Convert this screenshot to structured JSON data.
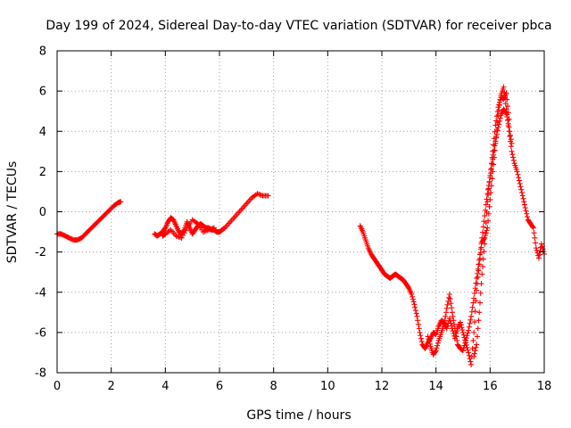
{
  "chart_data": {
    "type": "scatter",
    "title": "Day 199 of 2024, Sidereal Day-to-day VTEC variation (SDTVAR) for receiver pbca",
    "xlabel": "GPS time / hours",
    "ylabel": "SDTVAR / TECUs",
    "xlim": [
      0,
      18
    ],
    "ylim": [
      -8,
      8
    ],
    "xticks": [
      0,
      2,
      4,
      6,
      8,
      10,
      12,
      14,
      16,
      18
    ],
    "yticks": [
      -8,
      -6,
      -4,
      -2,
      0,
      2,
      4,
      6,
      8
    ],
    "grid": true,
    "marker": "+",
    "color": "#ff0000",
    "series": [
      {
        "name": "arc 1",
        "x": [
          0.0,
          0.15,
          0.3,
          0.45,
          0.6,
          0.75,
          0.9,
          1.05,
          1.2,
          1.35,
          1.5,
          1.65,
          1.8,
          1.95,
          2.1,
          2.25,
          2.35
        ],
        "y": [
          -1.1,
          -1.1,
          -1.2,
          -1.3,
          -1.4,
          -1.4,
          -1.3,
          -1.1,
          -0.9,
          -0.7,
          -0.5,
          -0.3,
          -0.1,
          0.1,
          0.3,
          0.45,
          0.5
        ]
      },
      {
        "name": "arc 2",
        "x": [
          3.6,
          3.7,
          3.8,
          3.9,
          4.0,
          4.1,
          4.2,
          4.3,
          4.4,
          4.5,
          4.6,
          4.7,
          4.8,
          4.9,
          5.0,
          5.1,
          5.2,
          5.3,
          5.4,
          5.5,
          5.6,
          5.7,
          5.8,
          5.9,
          6.0,
          6.1,
          6.2,
          6.4,
          6.6,
          6.8,
          7.0,
          7.2,
          7.4,
          7.6,
          7.8
        ],
        "y": [
          -1.1,
          -1.2,
          -1.1,
          -1.0,
          -0.8,
          -0.5,
          -0.3,
          -0.4,
          -0.7,
          -1.0,
          -1.1,
          -0.9,
          -0.5,
          -0.8,
          -1.1,
          -0.9,
          -0.7,
          -0.6,
          -0.7,
          -0.8,
          -0.8,
          -0.9,
          -0.9,
          -1.0,
          -1.0,
          -0.9,
          -0.8,
          -0.5,
          -0.2,
          0.1,
          0.4,
          0.7,
          0.9,
          0.8,
          0.8
        ]
      },
      {
        "name": "arc 2b",
        "x": [
          3.9,
          4.0,
          4.2,
          4.4,
          4.6,
          4.8,
          5.0,
          5.2,
          5.4,
          5.6,
          5.8
        ],
        "y": [
          -1.2,
          -1.1,
          -0.9,
          -1.2,
          -1.3,
          -0.8,
          -0.4,
          -0.6,
          -1.0,
          -0.9,
          -0.8
        ]
      },
      {
        "name": "arc 3",
        "x": [
          11.2,
          11.3,
          11.4,
          11.5,
          11.6,
          11.7,
          11.8,
          11.9,
          12.0,
          12.1,
          12.2,
          12.3,
          12.4,
          12.5,
          12.6,
          12.7,
          12.8,
          12.9,
          13.0,
          13.1,
          13.2,
          13.3,
          13.4,
          13.5,
          13.6,
          13.7,
          13.8,
          13.9,
          14.0,
          14.1,
          14.2,
          14.3,
          14.4,
          14.5,
          14.6,
          14.7,
          14.8,
          14.9,
          15.0,
          15.1,
          15.2,
          15.3,
          15.4,
          15.5,
          15.6,
          15.7,
          15.8,
          15.9,
          16.0,
          16.1,
          16.2,
          16.3,
          16.4,
          16.5,
          16.6,
          16.7,
          16.8,
          16.9,
          17.0,
          17.1,
          17.2,
          17.3,
          17.4,
          17.5,
          17.6,
          17.7,
          17.8,
          17.9,
          18.0
        ],
        "y": [
          -0.7,
          -1.0,
          -1.4,
          -1.8,
          -2.1,
          -2.3,
          -2.5,
          -2.7,
          -2.9,
          -3.1,
          -3.2,
          -3.3,
          -3.2,
          -3.1,
          -3.2,
          -3.3,
          -3.4,
          -3.6,
          -3.8,
          -4.1,
          -4.6,
          -5.2,
          -6.0,
          -6.6,
          -6.8,
          -6.5,
          -6.3,
          -6.0,
          -6.1,
          -5.7,
          -5.4,
          -5.5,
          -5.8,
          -5.3,
          -5.8,
          -6.3,
          -5.8,
          -5.5,
          -6.0,
          -6.5,
          -7.0,
          -7.6,
          -6.0,
          -3.9,
          -2.6,
          -1.5,
          -1.3,
          -0.8,
          0.6,
          2.0,
          3.4,
          4.8,
          5.8,
          6.2,
          5.1,
          4.0,
          3.0,
          2.4,
          2.0,
          1.4,
          0.8,
          0.2,
          -0.4,
          -0.6,
          -0.8,
          -1.8,
          -2.3,
          -1.6,
          -2.1
        ]
      },
      {
        "name": "arc 3b",
        "x": [
          13.7,
          13.8,
          13.9,
          14.0,
          14.1,
          14.2,
          14.3,
          14.4,
          14.5,
          14.6,
          14.7,
          14.8,
          14.9,
          15.0,
          15.1,
          15.2,
          15.3,
          15.4,
          15.5,
          15.6,
          15.7,
          15.8,
          15.9,
          16.0,
          16.1,
          16.2,
          16.3,
          16.4,
          16.5,
          16.6,
          16.7,
          16.8
        ],
        "y": [
          -6.2,
          -6.7,
          -7.1,
          -6.9,
          -6.4,
          -6.0,
          -5.6,
          -4.8,
          -4.1,
          -5.0,
          -5.8,
          -6.6,
          -6.8,
          -6.9,
          -6.4,
          -5.9,
          -5.2,
          -4.3,
          -3.3,
          -2.4,
          -1.3,
          -0.2,
          0.9,
          1.7,
          2.6,
          3.5,
          4.2,
          4.8,
          5.1,
          4.9,
          4.2,
          3.4
        ]
      },
      {
        "name": "arc 3c",
        "x": [
          15.4,
          15.5,
          15.6,
          15.7,
          15.8,
          15.9,
          16.0,
          16.1,
          16.2,
          16.3,
          16.4,
          16.5,
          16.6,
          16.7
        ],
        "y": [
          -7.2,
          -6.6,
          -5.0,
          -3.1,
          -1.6,
          0.5,
          1.8,
          3.0,
          4.3,
          5.2,
          5.7,
          5.6,
          5.9,
          4.6
        ]
      }
    ]
  }
}
